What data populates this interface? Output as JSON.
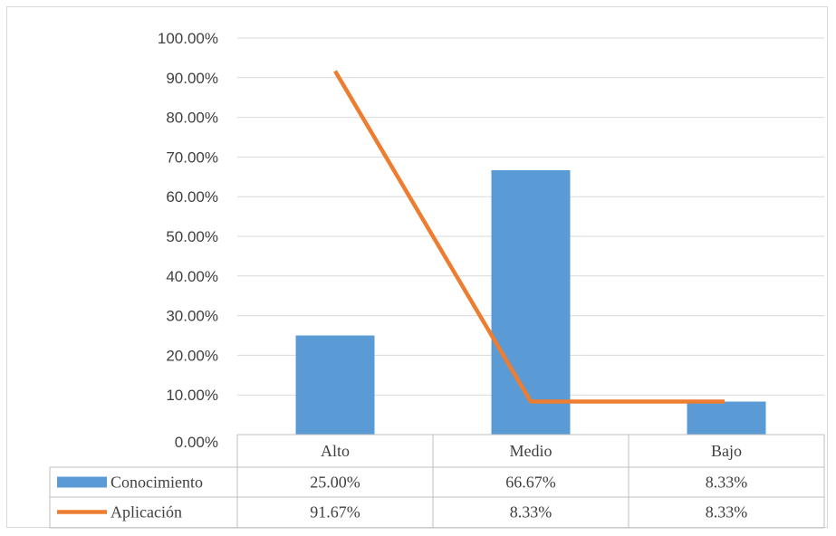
{
  "chart_data": {
    "type": "bar",
    "categories": [
      "Alto",
      "Medio",
      "Bajo"
    ],
    "series": [
      {
        "name": "Conocimiento",
        "type": "bar",
        "values": [
          25.0,
          66.67,
          8.33
        ],
        "labels": [
          "25.00%",
          "66.67%",
          "8.33%"
        ],
        "color": "#5b9bd5"
      },
      {
        "name": "Aplicación",
        "type": "line",
        "values": [
          91.67,
          8.33,
          8.33
        ],
        "labels": [
          "91.67%",
          "8.33%",
          "8.33%"
        ],
        "color": "#ed7d31"
      }
    ],
    "ylim": [
      0,
      100
    ],
    "yticks": [
      "0.00%",
      "10.00%",
      "20.00%",
      "30.00%",
      "40.00%",
      "50.00%",
      "60.00%",
      "70.00%",
      "80.00%",
      "90.00%",
      "100.00%"
    ],
    "grid": true,
    "legend": "data-table"
  }
}
